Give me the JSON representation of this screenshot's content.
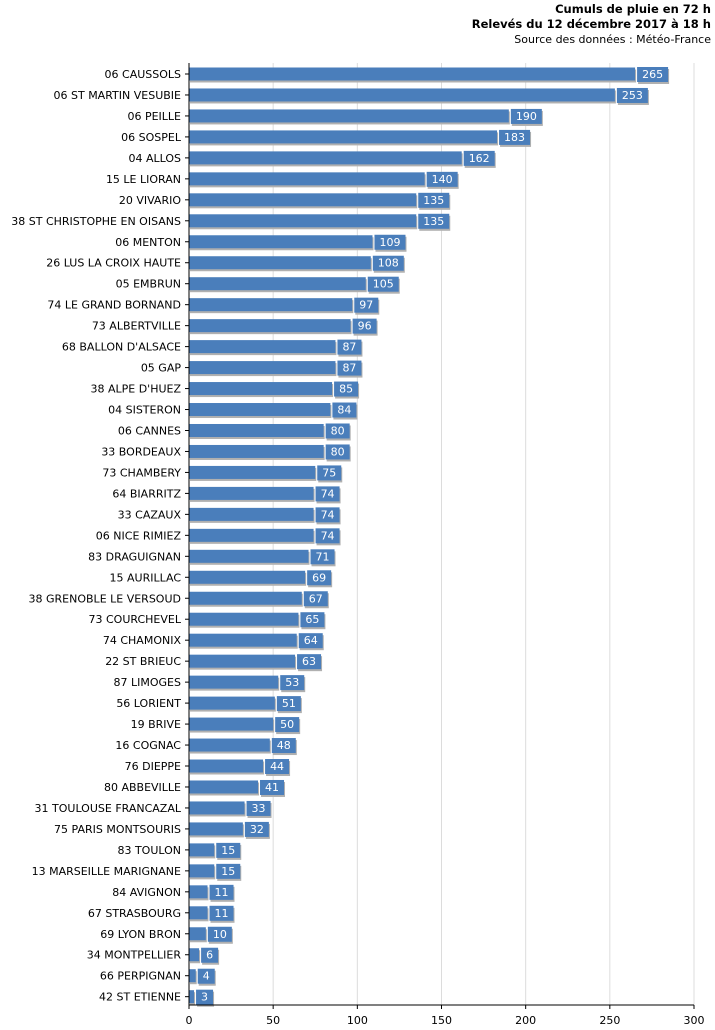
{
  "chart_data": {
    "type": "bar",
    "orientation": "horizontal",
    "title": "Cumuls de pluie en 72 h",
    "subtitle": "Relevés du 12 décembre 2017 à 18 h",
    "source": "Source des données : Météo-France",
    "xlim": [
      0,
      300
    ],
    "xticks": [
      0,
      50,
      100,
      150,
      200,
      250,
      300
    ],
    "grid": true,
    "color": "#4a7ebb",
    "label_color": "#4a7ebb",
    "categories": [
      "06 CAUSSOLS",
      "06 ST MARTIN VESUBIE",
      "06 PEILLE",
      "06 SOSPEL",
      "04 ALLOS",
      "15 LE LIORAN",
      "20 VIVARIO",
      "38 ST CHRISTOPHE EN OISANS",
      "06 MENTON",
      "26 LUS LA CROIX HAUTE",
      "05 EMBRUN",
      "74 LE GRAND BORNAND",
      "73 ALBERTVILLE",
      "68 BALLON D'ALSACE",
      "05 GAP",
      "38 ALPE D'HUEZ",
      "04 SISTERON",
      "06 CANNES",
      "33 BORDEAUX",
      "73 CHAMBERY",
      "64 BIARRITZ",
      "33 CAZAUX",
      "06 NICE RIMIEZ",
      "83 DRAGUIGNAN",
      "15 AURILLAC",
      "38 GRENOBLE LE VERSOUD",
      "73 COURCHEVEL",
      "74 CHAMONIX",
      "22 ST BRIEUC",
      "87 LIMOGES",
      "56 LORIENT",
      "19 BRIVE",
      "16 COGNAC",
      "76 DIEPPE",
      "80 ABBEVILLE",
      "31 TOULOUSE FRANCAZAL",
      "75 PARIS MONTSOURIS",
      "83 TOULON",
      "13 MARSEILLE MARIGNANE",
      "84 AVIGNON",
      "67 STRASBOURG",
      "69 LYON BRON",
      "34 MONTPELLIER",
      "66 PERPIGNAN",
      "42 ST ETIENNE"
    ],
    "values": [
      265,
      253,
      190,
      183,
      162,
      140,
      135,
      135,
      109,
      108,
      105,
      97,
      96,
      87,
      87,
      85,
      84,
      80,
      80,
      75,
      74,
      74,
      74,
      71,
      69,
      67,
      65,
      64,
      63,
      53,
      51,
      50,
      48,
      44,
      41,
      33,
      32,
      15,
      15,
      11,
      11,
      10,
      6,
      4,
      3
    ]
  }
}
